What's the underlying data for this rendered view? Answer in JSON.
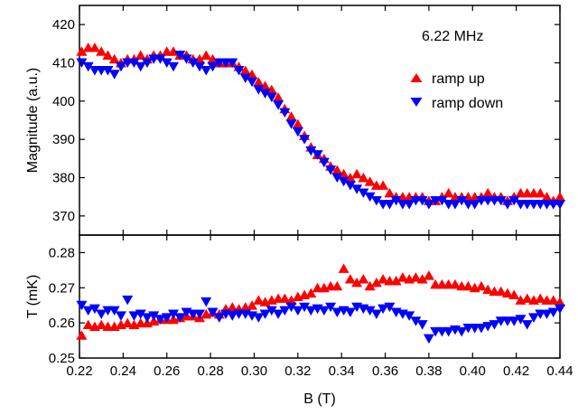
{
  "chart_data": [
    {
      "type": "scatter",
      "panel": "top",
      "ylabel": "Magnitude (a.u.)",
      "xlim": [
        0.22,
        0.44
      ],
      "ylim": [
        365,
        425
      ],
      "yticks": [
        370,
        380,
        390,
        400,
        410,
        420
      ],
      "grid": false,
      "annotation": "6.22 MHz",
      "legend_position": "top-right",
      "series": [
        {
          "name": "ramp up",
          "color": "#ff0000",
          "marker": "triangle-up",
          "x": [
            0.221,
            0.224,
            0.227,
            0.23,
            0.233,
            0.236,
            0.239,
            0.242,
            0.245,
            0.248,
            0.251,
            0.254,
            0.257,
            0.26,
            0.263,
            0.266,
            0.269,
            0.272,
            0.275,
            0.278,
            0.281,
            0.284,
            0.287,
            0.29,
            0.293,
            0.296,
            0.299,
            0.302,
            0.305,
            0.308,
            0.311,
            0.314,
            0.317,
            0.32,
            0.323,
            0.326,
            0.329,
            0.332,
            0.335,
            0.338,
            0.341,
            0.344,
            0.347,
            0.35,
            0.353,
            0.356,
            0.359,
            0.362,
            0.365,
            0.368,
            0.371,
            0.374,
            0.377,
            0.38,
            0.383,
            0.386,
            0.389,
            0.392,
            0.395,
            0.398,
            0.401,
            0.404,
            0.407,
            0.41,
            0.413,
            0.416,
            0.419,
            0.422,
            0.425,
            0.428,
            0.431,
            0.434,
            0.437,
            0.44
          ],
          "values": [
            413,
            414,
            414,
            413,
            412,
            411,
            410,
            411,
            411,
            412,
            411,
            412,
            412,
            413,
            413,
            412,
            412,
            411,
            411,
            412,
            411,
            410,
            410,
            410,
            409,
            408,
            407,
            405,
            404,
            403,
            401,
            398,
            396,
            394,
            391,
            388,
            386,
            385,
            383,
            382,
            381,
            380,
            381,
            380,
            379,
            378,
            378,
            376,
            375,
            375,
            375,
            375,
            375,
            374,
            374,
            375,
            376,
            375,
            375,
            375,
            375,
            375,
            376,
            375,
            375,
            374,
            375,
            376,
            376,
            376,
            376,
            375,
            374,
            375
          ]
        },
        {
          "name": "ramp down",
          "color": "#0000ff",
          "marker": "triangle-down",
          "x": [
            0.221,
            0.224,
            0.227,
            0.23,
            0.233,
            0.236,
            0.239,
            0.242,
            0.245,
            0.248,
            0.251,
            0.254,
            0.257,
            0.26,
            0.263,
            0.266,
            0.269,
            0.272,
            0.275,
            0.278,
            0.281,
            0.284,
            0.287,
            0.29,
            0.293,
            0.296,
            0.299,
            0.302,
            0.305,
            0.308,
            0.311,
            0.314,
            0.317,
            0.32,
            0.323,
            0.326,
            0.329,
            0.332,
            0.335,
            0.338,
            0.341,
            0.344,
            0.347,
            0.35,
            0.353,
            0.356,
            0.359,
            0.362,
            0.365,
            0.368,
            0.371,
            0.374,
            0.377,
            0.38,
            0.383,
            0.386,
            0.389,
            0.392,
            0.395,
            0.398,
            0.401,
            0.404,
            0.407,
            0.41,
            0.413,
            0.416,
            0.419,
            0.422,
            0.425,
            0.428,
            0.431,
            0.434,
            0.437,
            0.44
          ],
          "values": [
            410,
            409,
            408,
            408,
            408,
            407,
            409,
            410,
            410,
            409,
            410,
            411,
            411,
            410,
            409,
            412,
            411,
            410,
            409,
            408,
            409,
            410,
            410,
            410,
            408,
            406,
            405,
            403,
            402,
            401,
            399,
            397,
            394,
            392,
            390,
            387,
            386,
            384,
            382,
            380,
            379,
            378,
            377,
            376,
            375,
            374,
            373,
            373,
            374,
            373,
            373,
            374,
            374,
            373,
            374,
            374,
            373,
            373,
            374,
            373,
            373,
            374,
            374,
            374,
            374,
            373,
            374,
            373,
            373,
            373,
            373,
            373,
            373,
            373
          ]
        }
      ]
    },
    {
      "type": "scatter",
      "panel": "bottom",
      "xlabel": "B (T)",
      "ylabel": "T (mK)",
      "xlim": [
        0.22,
        0.44
      ],
      "ylim": [
        0.25,
        0.285
      ],
      "xticks": [
        "0.22",
        "0.24",
        "0.26",
        "0.28",
        "0.30",
        "0.32",
        "0.34",
        "0.36",
        "0.38",
        "0.40",
        "0.42",
        "0.44"
      ],
      "yticks": [
        "0.25",
        "0.26",
        "0.27",
        "0.28"
      ],
      "grid": false,
      "series": [
        {
          "name": "ramp up",
          "color": "#ff0000",
          "marker": "triangle-up",
          "x": [
            0.221,
            0.224,
            0.227,
            0.23,
            0.233,
            0.236,
            0.239,
            0.242,
            0.245,
            0.248,
            0.251,
            0.254,
            0.257,
            0.26,
            0.263,
            0.266,
            0.269,
            0.272,
            0.275,
            0.278,
            0.281,
            0.284,
            0.287,
            0.29,
            0.293,
            0.296,
            0.299,
            0.302,
            0.305,
            0.308,
            0.311,
            0.314,
            0.317,
            0.32,
            0.323,
            0.326,
            0.329,
            0.332,
            0.335,
            0.338,
            0.341,
            0.344,
            0.347,
            0.35,
            0.353,
            0.356,
            0.359,
            0.362,
            0.365,
            0.368,
            0.371,
            0.374,
            0.377,
            0.38,
            0.383,
            0.386,
            0.389,
            0.392,
            0.395,
            0.398,
            0.401,
            0.404,
            0.407,
            0.41,
            0.413,
            0.416,
            0.419,
            0.422,
            0.425,
            0.428,
            0.431,
            0.434,
            0.437,
            0.44
          ],
          "values": [
            0.2565,
            0.2595,
            0.259,
            0.2595,
            0.259,
            0.259,
            0.2595,
            0.26,
            0.2595,
            0.26,
            0.26,
            0.2605,
            0.261,
            0.261,
            0.261,
            0.2615,
            0.262,
            0.262,
            0.2615,
            0.2625,
            0.263,
            0.2625,
            0.264,
            0.2645,
            0.264,
            0.2645,
            0.265,
            0.2665,
            0.266,
            0.2665,
            0.267,
            0.267,
            0.2665,
            0.2675,
            0.268,
            0.2685,
            0.27,
            0.27,
            0.2705,
            0.2705,
            0.2755,
            0.2725,
            0.2715,
            0.2725,
            0.2705,
            0.2715,
            0.2725,
            0.272,
            0.272,
            0.273,
            0.2725,
            0.273,
            0.2725,
            0.2735,
            0.271,
            0.271,
            0.271,
            0.271,
            0.2705,
            0.2705,
            0.27,
            0.2705,
            0.2695,
            0.269,
            0.269,
            0.2685,
            0.268,
            0.2665,
            0.267,
            0.2665,
            0.267,
            0.2665,
            0.2665,
            0.266
          ]
        },
        {
          "name": "ramp down",
          "color": "#0000ff",
          "marker": "triangle-down",
          "x": [
            0.221,
            0.224,
            0.227,
            0.23,
            0.233,
            0.236,
            0.239,
            0.242,
            0.245,
            0.248,
            0.251,
            0.254,
            0.257,
            0.26,
            0.263,
            0.266,
            0.269,
            0.272,
            0.275,
            0.278,
            0.281,
            0.284,
            0.287,
            0.29,
            0.293,
            0.296,
            0.299,
            0.302,
            0.305,
            0.308,
            0.311,
            0.314,
            0.317,
            0.32,
            0.323,
            0.326,
            0.329,
            0.332,
            0.335,
            0.338,
            0.341,
            0.344,
            0.347,
            0.35,
            0.353,
            0.356,
            0.359,
            0.362,
            0.365,
            0.368,
            0.371,
            0.374,
            0.377,
            0.38,
            0.383,
            0.386,
            0.389,
            0.392,
            0.395,
            0.398,
            0.401,
            0.404,
            0.407,
            0.41,
            0.413,
            0.416,
            0.419,
            0.422,
            0.425,
            0.428,
            0.431,
            0.434,
            0.437,
            0.44
          ],
          "values": [
            0.265,
            0.2635,
            0.264,
            0.2625,
            0.2635,
            0.2635,
            0.262,
            0.2665,
            0.262,
            0.2625,
            0.2615,
            0.262,
            0.261,
            0.2615,
            0.2625,
            0.2615,
            0.263,
            0.2625,
            0.2625,
            0.266,
            0.263,
            0.2615,
            0.2625,
            0.262,
            0.2625,
            0.2625,
            0.262,
            0.2615,
            0.2625,
            0.2635,
            0.2625,
            0.2635,
            0.2645,
            0.2635,
            0.2645,
            0.2635,
            0.264,
            0.2635,
            0.2645,
            0.263,
            0.2635,
            0.263,
            0.2645,
            0.264,
            0.2635,
            0.2625,
            0.264,
            0.2645,
            0.263,
            0.2625,
            0.262,
            0.2605,
            0.2595,
            0.2555,
            0.2575,
            0.2575,
            0.2575,
            0.258,
            0.2575,
            0.2585,
            0.2585,
            0.2585,
            0.259,
            0.2595,
            0.2605,
            0.2605,
            0.2605,
            0.261,
            0.2595,
            0.2615,
            0.2625,
            0.2625,
            0.263,
            0.264
          ]
        }
      ]
    }
  ]
}
